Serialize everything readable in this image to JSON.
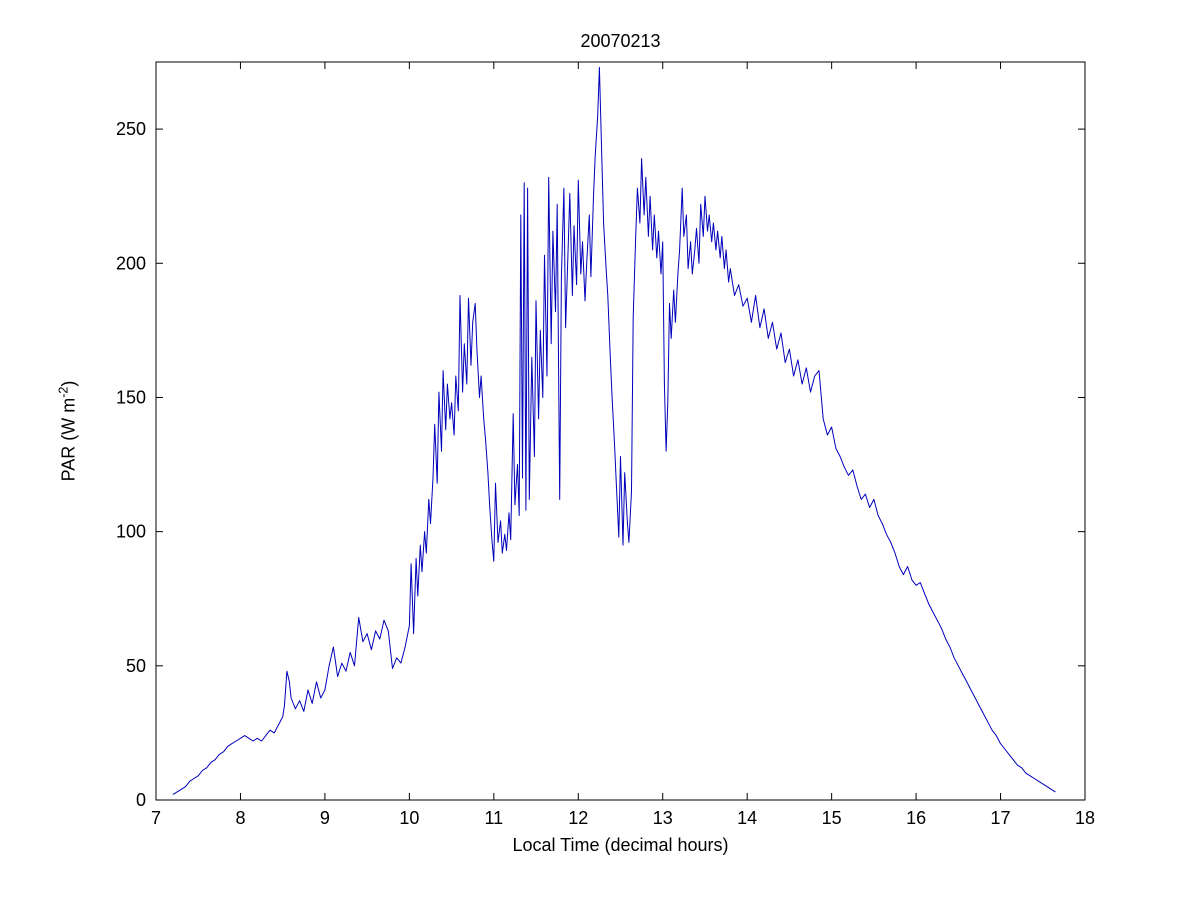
{
  "figure": {
    "title": "20070213",
    "xlabel": "Local Time (decimal hours)",
    "ylabel": {
      "pre": "PAR (W m",
      "sup": "-2",
      "post": ")"
    }
  },
  "chart_data": {
    "type": "line",
    "title": "20070213",
    "xlabel": "Local Time (decimal hours)",
    "ylabel": "PAR (W m^-2)",
    "xlim": [
      7,
      18
    ],
    "ylim": [
      0,
      275
    ],
    "xticks": [
      7,
      8,
      9,
      10,
      11,
      12,
      13,
      14,
      15,
      16,
      17,
      18
    ],
    "yticks": [
      0,
      50,
      100,
      150,
      200,
      250
    ],
    "grid": false,
    "legend": "none",
    "axis_color": "#000000",
    "line_color": "#0000bb",
    "series_name": "PAR",
    "points": [
      [
        7.2,
        2
      ],
      [
        7.25,
        3
      ],
      [
        7.3,
        4
      ],
      [
        7.35,
        5
      ],
      [
        7.4,
        7
      ],
      [
        7.45,
        8
      ],
      [
        7.5,
        9
      ],
      [
        7.55,
        11
      ],
      [
        7.6,
        12
      ],
      [
        7.65,
        14
      ],
      [
        7.7,
        15
      ],
      [
        7.75,
        17
      ],
      [
        7.8,
        18
      ],
      [
        7.85,
        20
      ],
      [
        7.9,
        21
      ],
      [
        7.95,
        22
      ],
      [
        8.0,
        23
      ],
      [
        8.05,
        24
      ],
      [
        8.1,
        23
      ],
      [
        8.15,
        22
      ],
      [
        8.2,
        23
      ],
      [
        8.25,
        22
      ],
      [
        8.3,
        24
      ],
      [
        8.35,
        26
      ],
      [
        8.4,
        25
      ],
      [
        8.45,
        28
      ],
      [
        8.5,
        31
      ],
      [
        8.52,
        35
      ],
      [
        8.55,
        48
      ],
      [
        8.58,
        44
      ],
      [
        8.6,
        38
      ],
      [
        8.65,
        34
      ],
      [
        8.7,
        37
      ],
      [
        8.75,
        33
      ],
      [
        8.8,
        41
      ],
      [
        8.85,
        36
      ],
      [
        8.9,
        44
      ],
      [
        8.95,
        38
      ],
      [
        9.0,
        41
      ],
      [
        9.05,
        50
      ],
      [
        9.1,
        57
      ],
      [
        9.15,
        46
      ],
      [
        9.2,
        51
      ],
      [
        9.25,
        48
      ],
      [
        9.3,
        55
      ],
      [
        9.35,
        50
      ],
      [
        9.4,
        68
      ],
      [
        9.45,
        59
      ],
      [
        9.5,
        62
      ],
      [
        9.55,
        56
      ],
      [
        9.6,
        63
      ],
      [
        9.65,
        60
      ],
      [
        9.7,
        67
      ],
      [
        9.75,
        63
      ],
      [
        9.8,
        49
      ],
      [
        9.85,
        53
      ],
      [
        9.9,
        51
      ],
      [
        9.95,
        57
      ],
      [
        10.0,
        65
      ],
      [
        10.02,
        88
      ],
      [
        10.05,
        62
      ],
      [
        10.08,
        90
      ],
      [
        10.1,
        76
      ],
      [
        10.13,
        95
      ],
      [
        10.15,
        85
      ],
      [
        10.18,
        100
      ],
      [
        10.2,
        92
      ],
      [
        10.23,
        112
      ],
      [
        10.25,
        103
      ],
      [
        10.28,
        120
      ],
      [
        10.3,
        140
      ],
      [
        10.33,
        118
      ],
      [
        10.35,
        152
      ],
      [
        10.38,
        130
      ],
      [
        10.4,
        160
      ],
      [
        10.43,
        138
      ],
      [
        10.45,
        155
      ],
      [
        10.48,
        142
      ],
      [
        10.5,
        148
      ],
      [
        10.53,
        136
      ],
      [
        10.55,
        158
      ],
      [
        10.58,
        145
      ],
      [
        10.6,
        188
      ],
      [
        10.63,
        152
      ],
      [
        10.65,
        170
      ],
      [
        10.68,
        155
      ],
      [
        10.7,
        187
      ],
      [
        10.73,
        162
      ],
      [
        10.75,
        178
      ],
      [
        10.78,
        185
      ],
      [
        10.8,
        168
      ],
      [
        10.83,
        150
      ],
      [
        10.85,
        158
      ],
      [
        10.88,
        142
      ],
      [
        10.9,
        135
      ],
      [
        10.93,
        122
      ],
      [
        10.95,
        110
      ],
      [
        10.98,
        96
      ],
      [
        11.0,
        89
      ],
      [
        11.02,
        118
      ],
      [
        11.05,
        96
      ],
      [
        11.08,
        104
      ],
      [
        11.1,
        92
      ],
      [
        11.13,
        99
      ],
      [
        11.15,
        93
      ],
      [
        11.18,
        107
      ],
      [
        11.2,
        97
      ],
      [
        11.23,
        144
      ],
      [
        11.25,
        110
      ],
      [
        11.28,
        125
      ],
      [
        11.3,
        106
      ],
      [
        11.32,
        218
      ],
      [
        11.34,
        120
      ],
      [
        11.36,
        230
      ],
      [
        11.38,
        108
      ],
      [
        11.4,
        228
      ],
      [
        11.42,
        112
      ],
      [
        11.45,
        165
      ],
      [
        11.48,
        128
      ],
      [
        11.5,
        186
      ],
      [
        11.53,
        142
      ],
      [
        11.55,
        175
      ],
      [
        11.58,
        150
      ],
      [
        11.6,
        203
      ],
      [
        11.63,
        158
      ],
      [
        11.65,
        232
      ],
      [
        11.68,
        170
      ],
      [
        11.7,
        212
      ],
      [
        11.73,
        182
      ],
      [
        11.75,
        222
      ],
      [
        11.78,
        112
      ],
      [
        11.8,
        195
      ],
      [
        11.83,
        228
      ],
      [
        11.85,
        176
      ],
      [
        11.88,
        205
      ],
      [
        11.9,
        226
      ],
      [
        11.93,
        188
      ],
      [
        11.95,
        214
      ],
      [
        11.98,
        192
      ],
      [
        12.0,
        231
      ],
      [
        12.03,
        196
      ],
      [
        12.05,
        208
      ],
      [
        12.08,
        186
      ],
      [
        12.1,
        200
      ],
      [
        12.13,
        218
      ],
      [
        12.15,
        195
      ],
      [
        12.18,
        225
      ],
      [
        12.2,
        240
      ],
      [
        12.23,
        255
      ],
      [
        12.25,
        273
      ],
      [
        12.28,
        238
      ],
      [
        12.3,
        215
      ],
      [
        12.33,
        198
      ],
      [
        12.35,
        188
      ],
      [
        12.38,
        164
      ],
      [
        12.4,
        150
      ],
      [
        12.43,
        132
      ],
      [
        12.45,
        118
      ],
      [
        12.48,
        98
      ],
      [
        12.5,
        128
      ],
      [
        12.53,
        95
      ],
      [
        12.55,
        122
      ],
      [
        12.58,
        104
      ],
      [
        12.6,
        96
      ],
      [
        12.63,
        115
      ],
      [
        12.65,
        180
      ],
      [
        12.68,
        210
      ],
      [
        12.7,
        228
      ],
      [
        12.73,
        215
      ],
      [
        12.75,
        239
      ],
      [
        12.78,
        218
      ],
      [
        12.8,
        232
      ],
      [
        12.83,
        210
      ],
      [
        12.85,
        225
      ],
      [
        12.88,
        205
      ],
      [
        12.9,
        218
      ],
      [
        12.93,
        202
      ],
      [
        12.95,
        212
      ],
      [
        12.98,
        196
      ],
      [
        13.0,
        208
      ],
      [
        13.02,
        155
      ],
      [
        13.04,
        130
      ],
      [
        13.06,
        148
      ],
      [
        13.08,
        185
      ],
      [
        13.1,
        172
      ],
      [
        13.13,
        190
      ],
      [
        13.15,
        178
      ],
      [
        13.18,
        196
      ],
      [
        13.2,
        205
      ],
      [
        13.23,
        228
      ],
      [
        13.25,
        210
      ],
      [
        13.28,
        218
      ],
      [
        13.3,
        198
      ],
      [
        13.33,
        208
      ],
      [
        13.35,
        196
      ],
      [
        13.38,
        205
      ],
      [
        13.4,
        213
      ],
      [
        13.43,
        200
      ],
      [
        13.45,
        222
      ],
      [
        13.48,
        210
      ],
      [
        13.5,
        225
      ],
      [
        13.53,
        212
      ],
      [
        13.55,
        218
      ],
      [
        13.58,
        208
      ],
      [
        13.6,
        215
      ],
      [
        13.63,
        205
      ],
      [
        13.65,
        212
      ],
      [
        13.68,
        202
      ],
      [
        13.7,
        210
      ],
      [
        13.73,
        198
      ],
      [
        13.75,
        205
      ],
      [
        13.78,
        193
      ],
      [
        13.8,
        198
      ],
      [
        13.85,
        188
      ],
      [
        13.9,
        192
      ],
      [
        13.95,
        184
      ],
      [
        14.0,
        187
      ],
      [
        14.05,
        178
      ],
      [
        14.1,
        188
      ],
      [
        14.15,
        176
      ],
      [
        14.2,
        183
      ],
      [
        14.25,
        172
      ],
      [
        14.3,
        178
      ],
      [
        14.35,
        168
      ],
      [
        14.4,
        174
      ],
      [
        14.45,
        163
      ],
      [
        14.5,
        168
      ],
      [
        14.55,
        158
      ],
      [
        14.6,
        164
      ],
      [
        14.65,
        155
      ],
      [
        14.7,
        161
      ],
      [
        14.75,
        152
      ],
      [
        14.8,
        158
      ],
      [
        14.85,
        160
      ],
      [
        14.9,
        142
      ],
      [
        14.95,
        136
      ],
      [
        15.0,
        139
      ],
      [
        15.05,
        131
      ],
      [
        15.1,
        128
      ],
      [
        15.15,
        124
      ],
      [
        15.2,
        121
      ],
      [
        15.25,
        123
      ],
      [
        15.3,
        117
      ],
      [
        15.35,
        112
      ],
      [
        15.4,
        114
      ],
      [
        15.45,
        109
      ],
      [
        15.5,
        112
      ],
      [
        15.55,
        106
      ],
      [
        15.6,
        103
      ],
      [
        15.65,
        99
      ],
      [
        15.7,
        96
      ],
      [
        15.75,
        92
      ],
      [
        15.8,
        87
      ],
      [
        15.85,
        84
      ],
      [
        15.9,
        87
      ],
      [
        15.95,
        82
      ],
      [
        16.0,
        80
      ],
      [
        16.05,
        81
      ],
      [
        16.1,
        77
      ],
      [
        16.15,
        73
      ],
      [
        16.2,
        70
      ],
      [
        16.25,
        67
      ],
      [
        16.3,
        64
      ],
      [
        16.35,
        60
      ],
      [
        16.4,
        57
      ],
      [
        16.45,
        53
      ],
      [
        16.5,
        50
      ],
      [
        16.55,
        47
      ],
      [
        16.6,
        44
      ],
      [
        16.65,
        41
      ],
      [
        16.7,
        38
      ],
      [
        16.75,
        35
      ],
      [
        16.8,
        32
      ],
      [
        16.85,
        29
      ],
      [
        16.9,
        26
      ],
      [
        16.95,
        24
      ],
      [
        17.0,
        21
      ],
      [
        17.05,
        19
      ],
      [
        17.1,
        17
      ],
      [
        17.15,
        15
      ],
      [
        17.2,
        13
      ],
      [
        17.25,
        12
      ],
      [
        17.3,
        10
      ],
      [
        17.35,
        9
      ],
      [
        17.4,
        8
      ],
      [
        17.45,
        7
      ],
      [
        17.5,
        6
      ],
      [
        17.55,
        5
      ],
      [
        17.6,
        4
      ],
      [
        17.65,
        3
      ]
    ]
  }
}
